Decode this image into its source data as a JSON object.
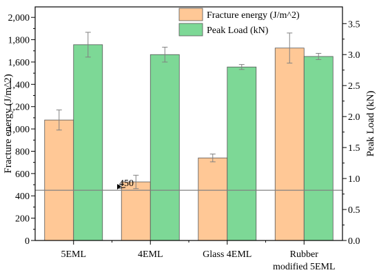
{
  "chart_data": {
    "type": "bar",
    "categories": [
      [
        "5EML"
      ],
      [
        "4EML"
      ],
      [
        "Glass 4EML"
      ],
      [
        "Rubber",
        "modified 5EML"
      ]
    ],
    "series": [
      {
        "name": "Fracture energy (J/m^2)",
        "axis": "left",
        "color": "#ffc896",
        "values": [
          1080,
          525,
          740,
          1725
        ],
        "errors": [
          90,
          60,
          35,
          135
        ]
      },
      {
        "name": "Peak Load (kN)",
        "axis": "right",
        "color": "#7dd896",
        "values": [
          3.16,
          3.0,
          2.8,
          2.97
        ],
        "errors": [
          0.2,
          0.12,
          0.04,
          0.05
        ]
      }
    ],
    "left_axis": {
      "label": "Fracture energy (J/m^2)",
      "range": [
        0,
        2000
      ],
      "ticks": [
        0,
        200,
        400,
        600,
        800,
        1000,
        1200,
        1400,
        1600,
        1800,
        2000
      ],
      "tick_labels": [
        "0",
        "200",
        "400",
        "600",
        "800",
        "1,000",
        "1,200",
        "1,400",
        "1,600",
        "1,800",
        "2,000"
      ]
    },
    "right_axis": {
      "label": "Peak Load (kN)",
      "range": [
        0,
        3.6
      ],
      "ticks": [
        0,
        0.5,
        1.0,
        1.5,
        2.0,
        2.5,
        3.0,
        3.5
      ],
      "tick_labels": [
        "0.0",
        "0.5",
        "1.0",
        "1.5",
        "2.0",
        "2.5",
        "3.0",
        "3.5"
      ]
    },
    "reference_line": {
      "value": 450,
      "axis": "left",
      "label": "450",
      "color": "#808080"
    },
    "legend_position": "top-right",
    "grid": false
  }
}
